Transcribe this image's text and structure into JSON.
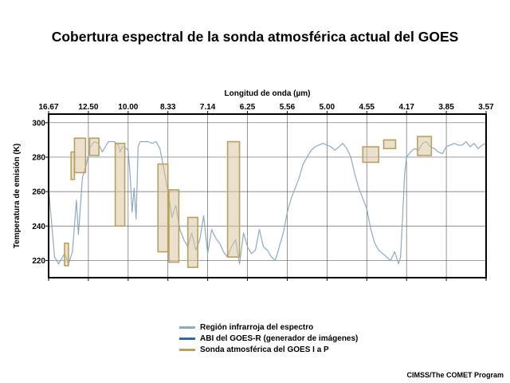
{
  "title": "Cobertura espectral de la sonda atmosférica actual del GOES",
  "credit": "CIMSS/The COMET Program",
  "colors": {
    "spectrum": "#8fa9c0",
    "abi": "#2c6aa5",
    "sounder_fill": "#d9c7a2",
    "sounder_stroke": "#b8a060"
  },
  "legend": [
    {
      "label": "Región infrarroja del espectro",
      "color": "#8fa9c0"
    },
    {
      "label": "ABI del GOES-R (generador de imágenes)",
      "color": "#2c6aa5"
    },
    {
      "label": "Sonda atmosférica del GOES I a P",
      "color": "#b8a060"
    }
  ],
  "chart_data": {
    "type": "line",
    "xlabel": "Longitud de onda (µm)",
    "ylabel": "Temperatura de emisión (K)",
    "x_unit": "wavenumber (cm-1), axis labelled in wavelength",
    "xlim": [
      600,
      2800
    ],
    "ylim": [
      210,
      305
    ],
    "x_ticks": [
      {
        "pos": 600,
        "label": "16.67"
      },
      {
        "pos": 800,
        "label": "12.50"
      },
      {
        "pos": 1000,
        "label": "10.00"
      },
      {
        "pos": 1200,
        "label": "8.33"
      },
      {
        "pos": 1400,
        "label": "7.14"
      },
      {
        "pos": 1600,
        "label": "6.25"
      },
      {
        "pos": 1800,
        "label": "5.56"
      },
      {
        "pos": 2000,
        "label": "5.00"
      },
      {
        "pos": 2200,
        "label": "4.55"
      },
      {
        "pos": 2400,
        "label": "4.17"
      },
      {
        "pos": 2600,
        "label": "3.85"
      },
      {
        "pos": 2800,
        "label": "3.57"
      }
    ],
    "y_ticks": [
      220,
      240,
      260,
      280,
      300
    ],
    "grid": true,
    "spectrum": {
      "name": "Región infrarroja del espectro",
      "x": [
        600,
        630,
        650,
        660,
        680,
        700,
        720,
        730,
        740,
        750,
        770,
        790,
        810,
        830,
        850,
        870,
        900,
        930,
        950,
        960,
        970,
        980,
        990,
        1000,
        1010,
        1020,
        1030,
        1040,
        1050,
        1060,
        1080,
        1100,
        1120,
        1140,
        1160,
        1180,
        1200,
        1220,
        1240,
        1260,
        1280,
        1300,
        1320,
        1340,
        1360,
        1380,
        1400,
        1420,
        1440,
        1460,
        1480,
        1500,
        1520,
        1540,
        1560,
        1580,
        1600,
        1620,
        1640,
        1660,
        1680,
        1700,
        1720,
        1740,
        1760,
        1780,
        1800,
        1820,
        1840,
        1860,
        1880,
        1900,
        1920,
        1940,
        1960,
        1980,
        2000,
        2020,
        2040,
        2060,
        2080,
        2100,
        2120,
        2140,
        2160,
        2180,
        2200,
        2220,
        2240,
        2260,
        2280,
        2300,
        2320,
        2340,
        2360,
        2370,
        2380,
        2390,
        2400,
        2420,
        2440,
        2460,
        2480,
        2500,
        2520,
        2540,
        2560,
        2580,
        2600,
        2620,
        2640,
        2660,
        2680,
        2700,
        2720,
        2740,
        2760,
        2780,
        2800
      ],
      "y": [
        262,
        222,
        218,
        220,
        224,
        218,
        225,
        240,
        255,
        235,
        268,
        276,
        286,
        289,
        288,
        283,
        289,
        289,
        287,
        283,
        286,
        286,
        285,
        284,
        270,
        248,
        262,
        244,
        286,
        289,
        289,
        289,
        288,
        289,
        285,
        273,
        260,
        245,
        252,
        238,
        232,
        228,
        236,
        226,
        232,
        246,
        224,
        238,
        233,
        230,
        225,
        222,
        228,
        232,
        218,
        236,
        228,
        224,
        226,
        238,
        228,
        226,
        222,
        220,
        228,
        236,
        248,
        256,
        262,
        268,
        276,
        280,
        284,
        286,
        287,
        288,
        287,
        286,
        284,
        286,
        288,
        285,
        280,
        270,
        262,
        256,
        250,
        238,
        230,
        226,
        224,
        222,
        220,
        225,
        218,
        222,
        245,
        270,
        280,
        283,
        285,
        284,
        288,
        289,
        286,
        285,
        283,
        282,
        286,
        287,
        288,
        287,
        287,
        289,
        286,
        288,
        285,
        287,
        288
      ]
    },
    "sounder_bands": [
      {
        "band": 1,
        "x": [
          680,
          700
        ],
        "y": [
          217,
          230
        ]
      },
      {
        "band": 2,
        "x": [
          713,
          730
        ],
        "y": [
          267,
          283
        ]
      },
      {
        "band": 3,
        "x": [
          730,
          786
        ],
        "y": [
          271,
          291
        ]
      },
      {
        "band": 4,
        "x": [
          806,
          853
        ],
        "y": [
          281,
          291
        ]
      },
      {
        "band": 5,
        "x": [
          935,
          983
        ],
        "y": [
          240,
          288
        ]
      },
      {
        "band": 6,
        "x": [
          1150,
          1200
        ],
        "y": [
          225,
          276
        ]
      },
      {
        "band": 7,
        "x": [
          1205,
          1255
        ],
        "y": [
          219,
          261
        ]
      },
      {
        "band": 8,
        "x": [
          1300,
          1350
        ],
        "y": [
          216,
          245
        ]
      },
      {
        "band": 9,
        "x": [
          1500,
          1560
        ],
        "y": [
          222,
          289
        ]
      },
      {
        "band": 10,
        "x": [
          2180,
          2260
        ],
        "y": [
          277,
          286
        ]
      },
      {
        "band": 11,
        "x": [
          2285,
          2345
        ],
        "y": [
          285,
          290
        ]
      },
      {
        "band": 12,
        "x": [
          2455,
          2525
        ],
        "y": [
          281,
          292
        ]
      }
    ]
  }
}
